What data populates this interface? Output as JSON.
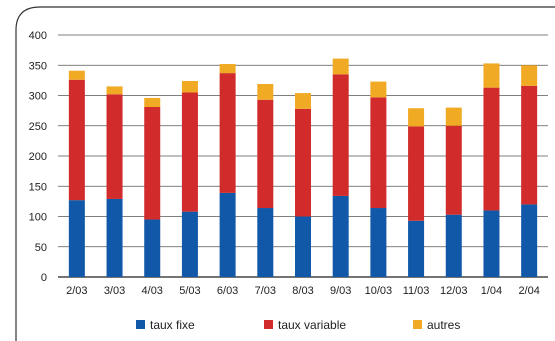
{
  "chart_data": {
    "type": "bar",
    "stacked": true,
    "categories": [
      "2/03",
      "3/03",
      "4/03",
      "5/03",
      "6/03",
      "7/03",
      "8/03",
      "9/03",
      "10/03",
      "11/03",
      "12/03",
      "1/04",
      "2/04"
    ],
    "series": [
      {
        "name": "taux fixe",
        "color": "#1158a8",
        "values": [
          127,
          129,
          95,
          108,
          139,
          114,
          100,
          134,
          114,
          93,
          103,
          110,
          120
        ]
      },
      {
        "name": "taux variable",
        "color": "#d12b2b",
        "values": [
          199,
          173,
          186,
          197,
          198,
          179,
          178,
          201,
          183,
          156,
          147,
          203,
          196
        ]
      },
      {
        "name": "autres",
        "color": "#f0aa24",
        "values": [
          15,
          13,
          15,
          19,
          15,
          26,
          26,
          26,
          26,
          30,
          30,
          40,
          34
        ]
      }
    ],
    "yticks": [
      0,
      50,
      100,
      150,
      200,
      250,
      300,
      350,
      400
    ],
    "ylim": [
      0,
      400
    ],
    "grid": "horizontal",
    "legend": "bottom",
    "title": "",
    "xlabel": "",
    "ylabel": ""
  }
}
